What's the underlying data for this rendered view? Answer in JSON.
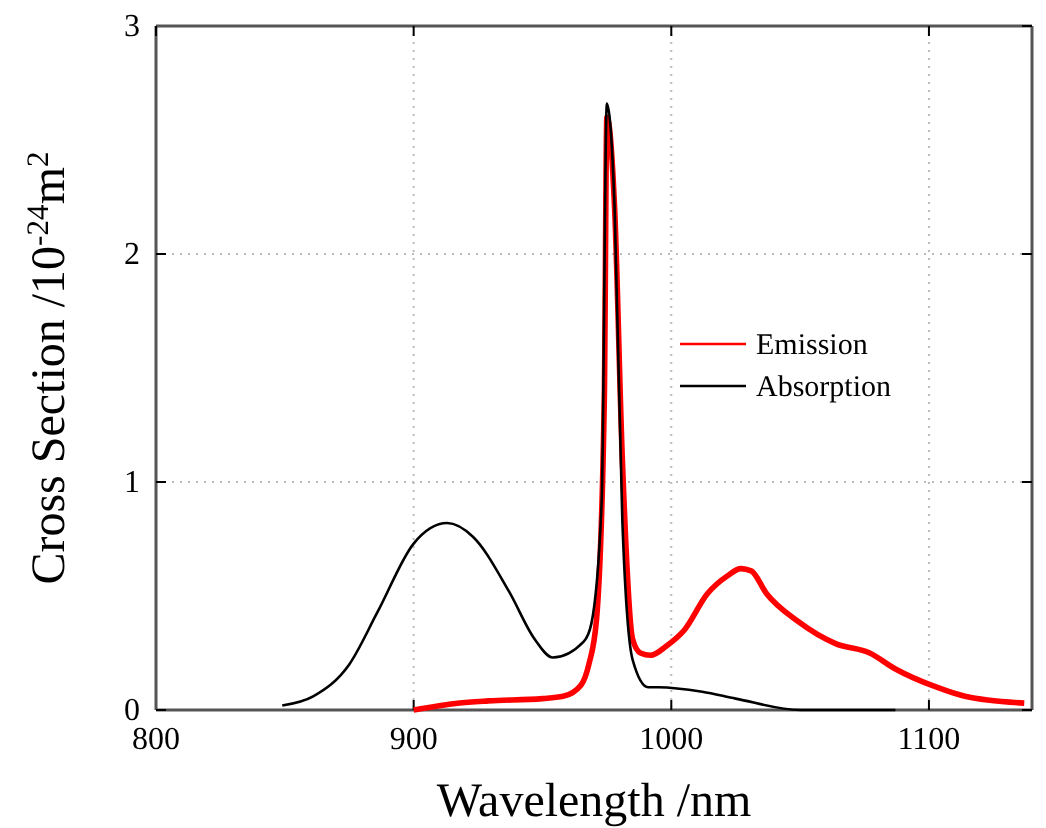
{
  "chart_data": {
    "type": "line",
    "xlabel": "Wavelength /nm",
    "ylabel": "Cross Section /10$^{-24}$m$^{2}$",
    "xlim": [
      800,
      1140
    ],
    "ylim": [
      0,
      3
    ],
    "xticks": [
      800,
      900,
      1000,
      1100
    ],
    "yticks": [
      0,
      1,
      2,
      3
    ],
    "grid": true,
    "legend": "right",
    "marker": "none",
    "line_style": "solid",
    "series": [
      {
        "name": "Emission",
        "color": "#ff0000",
        "x": [
          900,
          917,
          929,
          950,
          958,
          965,
          968,
          971,
          974,
          975,
          978,
          981,
          985,
          988,
          992,
          998,
          1005,
          1014,
          1022,
          1027,
          1031,
          1037,
          1049,
          1064,
          1077,
          1087,
          1103,
          1114,
          1137
        ],
        "values": [
          0,
          0.03,
          0.04,
          0.05,
          0.06,
          0.11,
          0.2,
          0.4,
          1.36,
          2.6,
          2.2,
          1.1,
          0.31,
          0.25,
          0.24,
          0.28,
          0.35,
          0.51,
          0.59,
          0.62,
          0.61,
          0.51,
          0.39,
          0.29,
          0.25,
          0.18,
          0.1,
          0.06,
          0.03
        ]
      },
      {
        "name": "Absorption",
        "color": "#000000",
        "x": [
          849,
          861,
          875,
          886,
          900,
          913,
          923,
          937,
          947,
          954,
          966,
          969,
          973,
          975,
          978,
          981,
          985,
          991,
          995,
          1012,
          1025,
          1050,
          1087
        ],
        "values": [
          0.02,
          0.06,
          0.2,
          0.43,
          0.73,
          0.82,
          0.76,
          0.52,
          0.31,
          0.23,
          0.3,
          0.38,
          0.92,
          2.66,
          2.2,
          0.83,
          0.22,
          0.1,
          0.1,
          0.08,
          0.05,
          0,
          0
        ]
      }
    ]
  }
}
